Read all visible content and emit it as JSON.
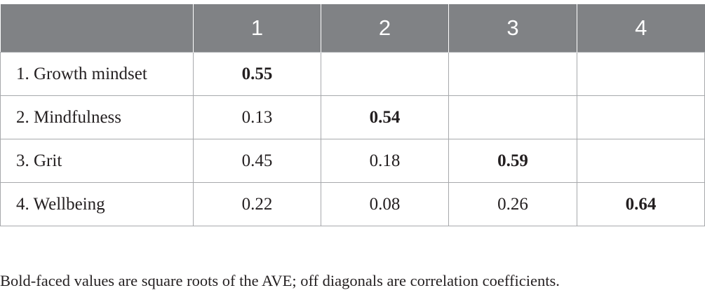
{
  "table": {
    "header": [
      "",
      "1",
      "2",
      "3",
      "4"
    ],
    "rows": [
      {
        "label": "1. Growth mindset",
        "cells": [
          "0.55",
          "",
          "",
          ""
        ]
      },
      {
        "label": "2. Mindfulness",
        "cells": [
          "0.13",
          "0.54",
          "",
          ""
        ]
      },
      {
        "label": "3. Grit",
        "cells": [
          "0.45",
          "0.18",
          "0.59",
          ""
        ]
      },
      {
        "label": "4. Wellbeing",
        "cells": [
          "0.22",
          "0.08",
          "0.26",
          "0.64"
        ]
      }
    ]
  },
  "footnote": "Bold-faced values are square roots of the AVE; off diagonals are correlation coefficients.",
  "colors": {
    "header_background": "#808285",
    "header_text": "#ffffff",
    "grid_lines": "#a7a9ac",
    "text": "#231f20"
  }
}
